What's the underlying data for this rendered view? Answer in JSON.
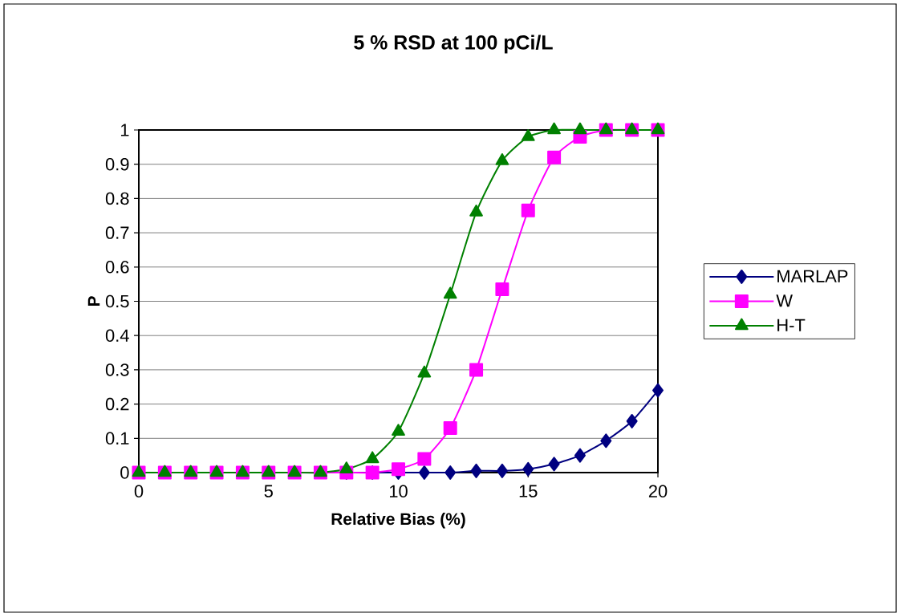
{
  "chart_data": {
    "type": "line",
    "title": "5 % RSD at 100 pCi/L",
    "xlabel": "Relative Bias (%)",
    "ylabel": "P",
    "x": [
      0,
      1,
      2,
      3,
      4,
      5,
      6,
      7,
      8,
      9,
      10,
      11,
      12,
      13,
      14,
      15,
      16,
      17,
      18,
      19,
      20
    ],
    "series": [
      {
        "name": "MARLAP",
        "color": "#000080",
        "marker": "diamond",
        "values": [
          null,
          null,
          null,
          null,
          null,
          null,
          null,
          null,
          0,
          0,
          0,
          0,
          0,
          0.005,
          0.005,
          0.01,
          0.025,
          0.05,
          0.093,
          0.15,
          0.24
        ]
      },
      {
        "name": "W",
        "color": "#ff00ff",
        "marker": "square",
        "values": [
          0,
          0,
          0,
          0,
          0,
          0,
          0,
          0,
          0,
          0,
          0.01,
          0.04,
          0.13,
          0.3,
          0.535,
          0.765,
          0.92,
          0.98,
          1,
          1,
          1
        ]
      },
      {
        "name": "H-T",
        "color": "#008000",
        "marker": "triangle",
        "values": [
          0,
          0,
          0,
          0,
          0,
          0,
          0,
          0,
          0.01,
          0.04,
          0.12,
          0.29,
          0.52,
          0.76,
          0.91,
          0.98,
          1,
          1,
          1,
          1,
          1
        ]
      }
    ],
    "xlim": [
      0,
      20
    ],
    "xticks": [
      0,
      5,
      10,
      15,
      20
    ],
    "ylim": [
      0,
      1
    ],
    "yticks": [
      0,
      0.1,
      0.2,
      0.3,
      0.4,
      0.5,
      0.6,
      0.7,
      0.8,
      0.9,
      1
    ],
    "grid": "y",
    "legend": "right"
  }
}
